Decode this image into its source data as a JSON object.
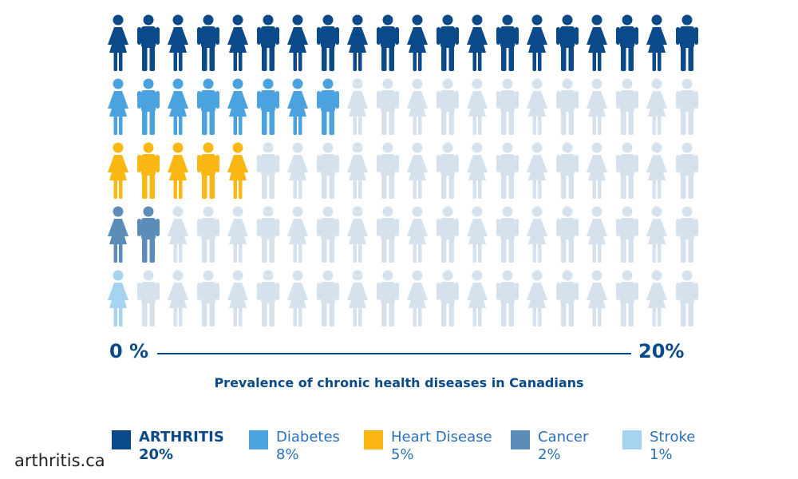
{
  "chart_data": {
    "type": "pictograph",
    "title": "Prevalence of chronic health diseases in Canadians",
    "axis": {
      "start_label": "0 %",
      "end_label": "20%",
      "range": [
        0,
        20
      ]
    },
    "icons_per_row": 20,
    "empty_color": "#d5e2ee",
    "series": [
      {
        "name": "ARTHRITIS",
        "value": 20,
        "value_label": "20%",
        "color": "#0a4a8a"
      },
      {
        "name": "Diabetes",
        "value": 8,
        "value_label": "8%",
        "color": "#4aa3df"
      },
      {
        "name": "Heart Disease",
        "value": 5,
        "value_label": "5%",
        "color": "#fbb714"
      },
      {
        "name": "Cancer",
        "value": 2,
        "value_label": "2%",
        "color": "#5b8db8"
      },
      {
        "name": "Stroke",
        "value": 1,
        "value_label": "1%",
        "color": "#a6d4f0"
      }
    ]
  },
  "source": "arthritis.ca"
}
